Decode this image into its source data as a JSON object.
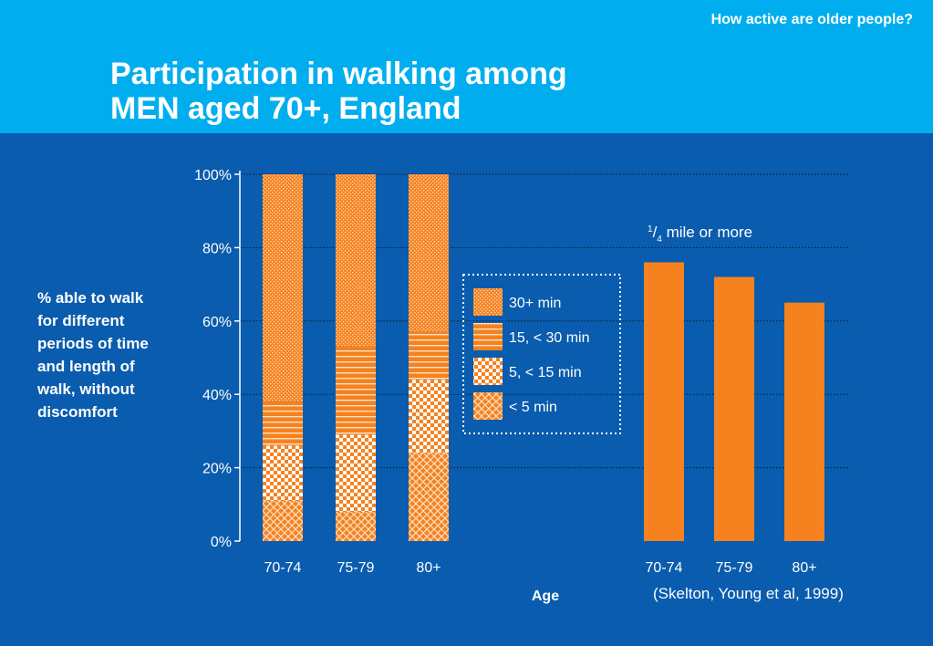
{
  "header": {
    "series_title": "How active are older people?",
    "title_line1": "Participation in walking among",
    "title_line2": "MEN aged 70+, England"
  },
  "ylabel_lines": [
    "% able to walk",
    "for different",
    "periods of time",
    "and length of",
    "walk, without",
    "discomfort"
  ],
  "source": "(Skelton, Young et al, 1999)",
  "colors": {
    "header_band": "#00aeef",
    "background": "#0a5cae",
    "bar_orange": "#f5821f",
    "text": "#ffffff"
  },
  "chart_data": [
    {
      "type": "bar",
      "stacked": true,
      "categories": [
        "70-74",
        "75-79",
        "80+"
      ],
      "series": [
        {
          "name": "< 5 min",
          "values": [
            11,
            8,
            24
          ],
          "pattern": "cross-hatch"
        },
        {
          "name": "5, < 15 min",
          "values": [
            15,
            21,
            20
          ],
          "pattern": "checker"
        },
        {
          "name": "15, < 30 min",
          "values": [
            12,
            24,
            13
          ],
          "pattern": "horizontal-lines"
        },
        {
          "name": "30+ min",
          "values": [
            62,
            47,
            43
          ],
          "pattern": "dotted"
        }
      ],
      "ylim": [
        0,
        100
      ],
      "yticks": [
        "0%",
        "20%",
        "40%",
        "60%",
        "80%",
        "100%"
      ],
      "xlabel": "Age",
      "grid": true,
      "legend_position": "center-right"
    },
    {
      "type": "bar",
      "annotation": {
        "sup": "1",
        "slash": "/",
        "sub": "4",
        "text": " mile or more"
      },
      "categories": [
        "70-74",
        "75-79",
        "80+"
      ],
      "values": [
        76,
        72,
        65
      ],
      "ylim": [
        0,
        100
      ]
    }
  ]
}
